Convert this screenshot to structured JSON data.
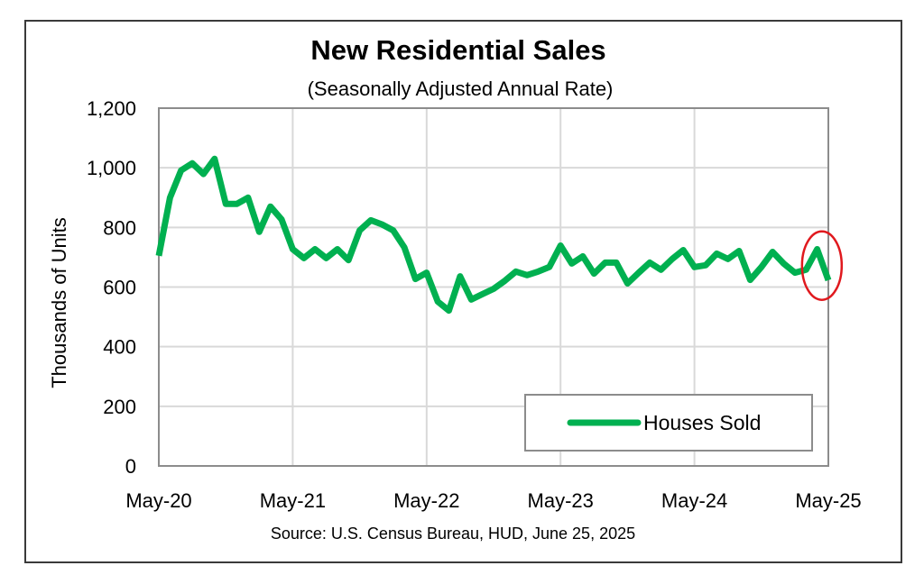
{
  "chart_data": {
    "type": "line",
    "title": "New Residential Sales",
    "subtitle": "(Seasonally Adjusted Annual Rate)",
    "xlabel": "",
    "ylabel": "Thousands of Units",
    "source": "Source:  U.S. Census Bureau, HUD, June 25, 2025",
    "ylim": [
      0,
      1200
    ],
    "yticks": [
      0,
      200,
      400,
      600,
      800,
      1000,
      1200
    ],
    "ytick_labels": [
      "0",
      "200",
      "400",
      "600",
      "800",
      "1,000",
      "1,200"
    ],
    "xticks": [
      "May-20",
      "May-21",
      "May-22",
      "May-23",
      "May-24",
      "May-25"
    ],
    "xtick_month_index": [
      0,
      12,
      24,
      36,
      48,
      60
    ],
    "grid": true,
    "legend": {
      "placement": "bottom-right",
      "entries": [
        "Houses Sold"
      ]
    },
    "annotation": {
      "type": "ellipse",
      "color": "#e0191e",
      "highlights": "Apr-25 to May-25"
    },
    "x": [
      "May-20",
      "Jun-20",
      "Jul-20",
      "Aug-20",
      "Sep-20",
      "Oct-20",
      "Nov-20",
      "Dec-20",
      "Jan-21",
      "Feb-21",
      "Mar-21",
      "Apr-21",
      "May-21",
      "Jun-21",
      "Jul-21",
      "Aug-21",
      "Sep-21",
      "Oct-21",
      "Nov-21",
      "Dec-21",
      "Jan-22",
      "Feb-22",
      "Mar-22",
      "Apr-22",
      "May-22",
      "Jun-22",
      "Jul-22",
      "Aug-22",
      "Sep-22",
      "Oct-22",
      "Nov-22",
      "Dec-22",
      "Jan-23",
      "Feb-23",
      "Mar-23",
      "Apr-23",
      "May-23",
      "Jun-23",
      "Jul-23",
      "Aug-23",
      "Sep-23",
      "Oct-23",
      "Nov-23",
      "Dec-23",
      "Jan-24",
      "Feb-24",
      "Mar-24",
      "Apr-24",
      "May-24",
      "Jun-24",
      "Jul-24",
      "Aug-24",
      "Sep-24",
      "Oct-24",
      "Nov-24",
      "Dec-24",
      "Jan-25",
      "Feb-25",
      "Mar-25",
      "Apr-25",
      "May-25"
    ],
    "series": [
      {
        "name": "Houses Sold",
        "color": "#00b050",
        "values": [
          705,
          900,
          991,
          1015,
          979,
          1030,
          879,
          879,
          900,
          785,
          870,
          827,
          727,
          697,
          727,
          697,
          727,
          690,
          790,
          824,
          810,
          790,
          733,
          627,
          648,
          551,
          521,
          636,
          558,
          576,
          594,
          621,
          652,
          640,
          652,
          667,
          739,
          679,
          703,
          645,
          682,
          682,
          612,
          648,
          682,
          658,
          694,
          724,
          667,
          673,
          712,
          694,
          721,
          624,
          667,
          718,
          679,
          648,
          658,
          727,
          623
        ]
      }
    ]
  }
}
